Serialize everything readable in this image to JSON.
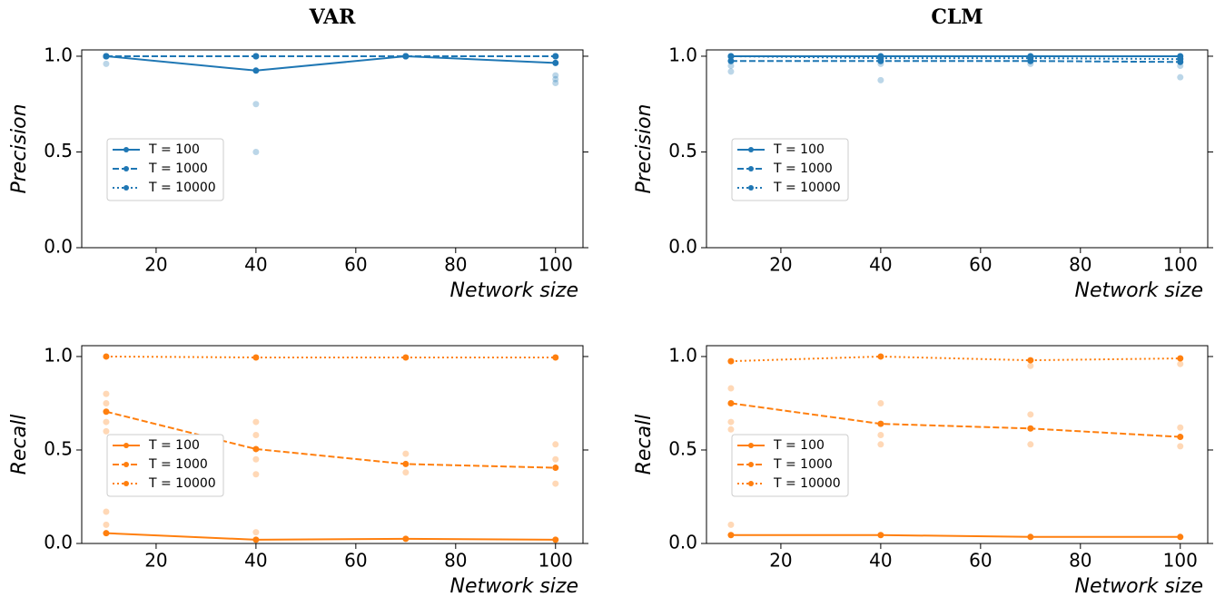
{
  "chart_data": [
    {
      "type": "line",
      "title": "VAR",
      "ylabel": "Precision",
      "xlabel": "Network size",
      "x": [
        10,
        40,
        70,
        100
      ],
      "series": [
        {
          "name": "T = 100",
          "color": "#1f77b4",
          "dash": "solid",
          "values": [
            1.0,
            0.925,
            1.0,
            0.965
          ]
        },
        {
          "name": "T = 1000",
          "color": "#1f77b4",
          "dash": "dashed",
          "values": [
            1.0,
            1.0,
            1.0,
            1.0
          ]
        },
        {
          "name": "T = 10000",
          "color": "#1f77b4",
          "dash": "dotted",
          "values": [
            1.0,
            1.0,
            1.0,
            1.0
          ]
        }
      ],
      "trials": {
        "color": "#1f77b4",
        "x": [
          10,
          40,
          40,
          100,
          100,
          100
        ],
        "values": [
          0.96,
          0.75,
          0.5,
          0.9,
          0.88,
          0.86
        ]
      },
      "xlim": [
        5.1,
        105.5
      ],
      "xticks": [
        20,
        40,
        60,
        80,
        100
      ],
      "ylim": [
        0,
        1.033
      ],
      "yticks": [
        {
          "value": 0,
          "label": "0.0"
        },
        {
          "value": 0.5,
          "label": "0.5"
        },
        {
          "value": 1,
          "label": "1.0"
        }
      ],
      "legend": "center left"
    },
    {
      "type": "line",
      "title": "CLM",
      "ylabel": "Precision",
      "xlabel": "Network size",
      "x": [
        10,
        40,
        70,
        100
      ],
      "series": [
        {
          "name": "T = 100",
          "color": "#1f77b4",
          "dash": "solid",
          "values": [
            1.0,
            1.0,
            1.0,
            1.0
          ]
        },
        {
          "name": "T = 1000",
          "color": "#1f77b4",
          "dash": "dashed",
          "values": [
            0.975,
            0.975,
            0.975,
            0.97
          ]
        },
        {
          "name": "T = 10000",
          "color": "#1f77b4",
          "dash": "dotted",
          "values": [
            1.0,
            0.99,
            0.99,
            0.985
          ]
        }
      ],
      "trials": {
        "color": "#1f77b4",
        "x": [
          10,
          10,
          40,
          40,
          70,
          100,
          100
        ],
        "values": [
          0.92,
          0.95,
          0.875,
          0.96,
          0.96,
          0.89,
          0.95
        ]
      },
      "xlim": [
        5.1,
        105.5
      ],
      "xticks": [
        20,
        40,
        60,
        80,
        100
      ],
      "ylim": [
        0,
        1.033
      ],
      "yticks": [
        {
          "value": 0,
          "label": "0.0"
        },
        {
          "value": 0.5,
          "label": "0.5"
        },
        {
          "value": 1,
          "label": "1.0"
        }
      ],
      "legend": "center left"
    },
    {
      "type": "line",
      "ylabel": "Recall",
      "xlabel": "Network size",
      "x": [
        10,
        40,
        70,
        100
      ],
      "series": [
        {
          "name": "T = 100",
          "color": "#ff7f0e",
          "dash": "solid",
          "values": [
            0.055,
            0.02,
            0.025,
            0.02
          ]
        },
        {
          "name": "T = 1000",
          "color": "#ff7f0e",
          "dash": "dashed",
          "values": [
            0.705,
            0.505,
            0.425,
            0.405
          ]
        },
        {
          "name": "T = 10000",
          "color": "#ff7f0e",
          "dash": "dotted",
          "values": [
            1.0,
            0.995,
            0.995,
            0.995
          ]
        }
      ],
      "trials": {
        "color": "#ff7f0e",
        "x": [
          10,
          10,
          10,
          10,
          10,
          10,
          40,
          40,
          40,
          40,
          40,
          70,
          70,
          100,
          100,
          100
        ],
        "values": [
          0.8,
          0.75,
          0.65,
          0.6,
          0.17,
          0.1,
          0.65,
          0.58,
          0.45,
          0.37,
          0.06,
          0.48,
          0.38,
          0.53,
          0.45,
          0.32
        ]
      },
      "xlim": [
        5.1,
        105.5
      ],
      "xticks": [
        20,
        40,
        60,
        80,
        100
      ],
      "ylim": [
        0,
        1.058
      ],
      "yticks": [
        {
          "value": 0,
          "label": "0.0"
        },
        {
          "value": 0.5,
          "label": "0.5"
        },
        {
          "value": 1,
          "label": "1.0"
        }
      ],
      "legend": "center left"
    },
    {
      "type": "line",
      "ylabel": "Recall",
      "xlabel": "Network size",
      "x": [
        10,
        40,
        70,
        100
      ],
      "series": [
        {
          "name": "T = 100",
          "color": "#ff7f0e",
          "dash": "solid",
          "values": [
            0.045,
            0.045,
            0.035,
            0.035
          ]
        },
        {
          "name": "T = 1000",
          "color": "#ff7f0e",
          "dash": "dashed",
          "values": [
            0.75,
            0.64,
            0.615,
            0.57
          ]
        },
        {
          "name": "T = 10000",
          "color": "#ff7f0e",
          "dash": "dotted",
          "values": [
            0.975,
            1.0,
            0.98,
            0.99
          ]
        }
      ],
      "trials": {
        "color": "#ff7f0e",
        "x": [
          10,
          10,
          10,
          10,
          40,
          40,
          40,
          70,
          70,
          70,
          100,
          100,
          100
        ],
        "values": [
          0.83,
          0.65,
          0.61,
          0.1,
          0.75,
          0.53,
          0.58,
          0.69,
          0.53,
          0.95,
          0.62,
          0.52,
          0.96
        ]
      },
      "xlim": [
        5.1,
        105.5
      ],
      "xticks": [
        20,
        40,
        60,
        80,
        100
      ],
      "ylim": [
        0,
        1.058
      ],
      "yticks": [
        {
          "value": 0,
          "label": "0.0"
        },
        {
          "value": 0.5,
          "label": "0.5"
        },
        {
          "value": 1,
          "label": "1.0"
        }
      ],
      "legend": "center left"
    }
  ]
}
